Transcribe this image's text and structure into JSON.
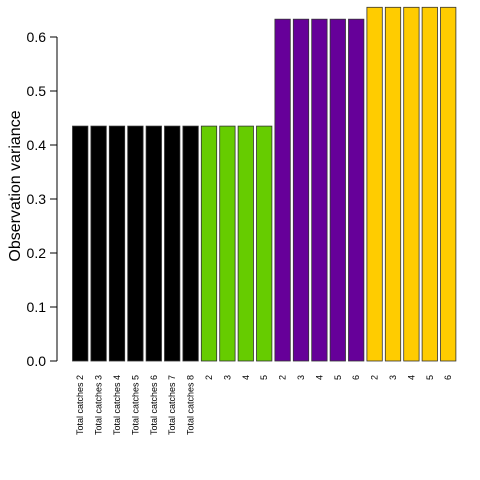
{
  "chart_data": {
    "type": "bar",
    "title": "",
    "xlabel": "",
    "ylabel": "Observation variance",
    "ylim": [
      0,
      0.65
    ],
    "yticks": [
      "0.0",
      "0.1",
      "0.2",
      "0.3",
      "0.4",
      "0.5",
      "0.6"
    ],
    "grid": false,
    "legend": "none",
    "categories": [
      "Total catches 2",
      "Total catches 3",
      "Total catches 4",
      "Total catches 5",
      "Total catches 6",
      "Total catches 7",
      "Total catches 8",
      "2",
      "3",
      "4",
      "5",
      "2",
      "3",
      "4",
      "5",
      "6",
      "2",
      "3",
      "4",
      "5",
      "6"
    ],
    "values": [
      0.435,
      0.435,
      0.435,
      0.435,
      0.435,
      0.435,
      0.435,
      0.435,
      0.435,
      0.435,
      0.435,
      0.633,
      0.633,
      0.633,
      0.633,
      0.633,
      0.655,
      0.655,
      0.655,
      0.655,
      0.655
    ],
    "colors": [
      "#000000",
      "#000000",
      "#000000",
      "#000000",
      "#000000",
      "#000000",
      "#000000",
      "#66cc00",
      "#66cc00",
      "#66cc00",
      "#66cc00",
      "#660099",
      "#660099",
      "#660099",
      "#660099",
      "#660099",
      "#ffcc00",
      "#ffcc00",
      "#ffcc00",
      "#ffcc00",
      "#ffcc00"
    ]
  }
}
